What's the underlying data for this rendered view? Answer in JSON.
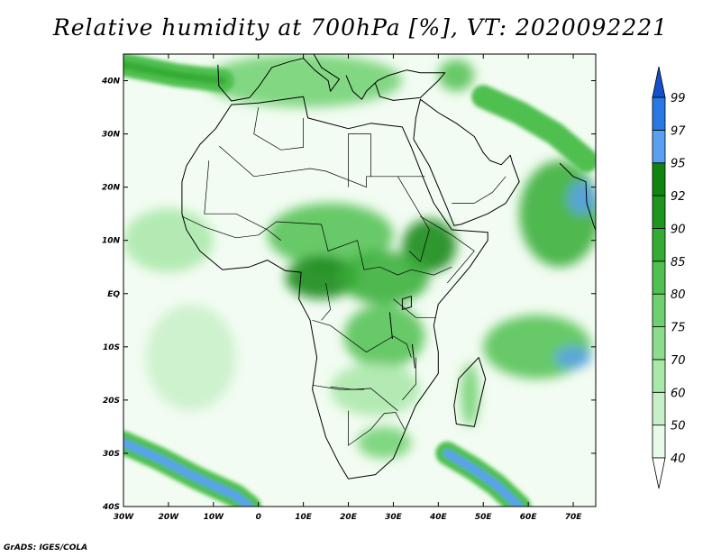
{
  "title": "Relative humidity at 700hPa [%], VT: 2020092221",
  "credit": "GrADS: IGES/COLA",
  "map": {
    "projection": "latlon",
    "lon_range": [
      -30,
      75
    ],
    "lat_range": [
      -40,
      45
    ],
    "x_ticks": [
      {
        "lon": -30,
        "label": "30W"
      },
      {
        "lon": -20,
        "label": "20W"
      },
      {
        "lon": -10,
        "label": "10W"
      },
      {
        "lon": 0,
        "label": "0"
      },
      {
        "lon": 10,
        "label": "10E"
      },
      {
        "lon": 20,
        "label": "20E"
      },
      {
        "lon": 30,
        "label": "30E"
      },
      {
        "lon": 40,
        "label": "40E"
      },
      {
        "lon": 50,
        "label": "50E"
      },
      {
        "lon": 60,
        "label": "60E"
      },
      {
        "lon": 70,
        "label": "70E"
      }
    ],
    "y_ticks": [
      {
        "lat": 40,
        "label": "40N"
      },
      {
        "lat": 30,
        "label": "30N"
      },
      {
        "lat": 20,
        "label": "20N"
      },
      {
        "lat": 10,
        "label": "10N"
      },
      {
        "lat": 0,
        "label": "EQ"
      },
      {
        "lat": -10,
        "label": "10S"
      },
      {
        "lat": -20,
        "label": "20S"
      },
      {
        "lat": -30,
        "label": "30S"
      },
      {
        "lat": -40,
        "label": "40S"
      }
    ]
  },
  "colorbar": {
    "levels": [
      "40",
      "50",
      "60",
      "70",
      "75",
      "80",
      "85",
      "90",
      "92",
      "95",
      "97",
      "99"
    ],
    "colors": [
      "#ffffff",
      "#e8fae8",
      "#c8f0c8",
      "#a8e8a8",
      "#8cdc8c",
      "#6ed06e",
      "#50c050",
      "#34ac34",
      "#1e961e",
      "#108410",
      "#5aa0f0",
      "#2878e6",
      "#1450c8"
    ]
  },
  "chart_data": {
    "type": "heatmap",
    "variable": "Relative humidity at 700hPa",
    "unit": "%",
    "valid_time": "2020092221",
    "contour_levels": [
      40,
      50,
      60,
      70,
      75,
      80,
      85,
      90,
      92,
      95,
      97,
      99
    ],
    "x_range": [
      -30,
      75
    ],
    "y_range": [
      -40,
      45
    ],
    "moist_regions": [
      {
        "lon": 16,
        "lat": 11,
        "rx": 14,
        "ry": 6,
        "value": 82
      },
      {
        "lon": 14,
        "lat": 3,
        "rx": 8,
        "ry": 4,
        "value": 94
      },
      {
        "lon": 38,
        "lat": 9,
        "rx": 6,
        "ry": 5,
        "value": 92
      },
      {
        "lon": 28,
        "lat": 3,
        "rx": 10,
        "ry": 5,
        "value": 86
      },
      {
        "lon": 28,
        "lat": -8,
        "rx": 9,
        "ry": 6,
        "value": 80
      },
      {
        "lon": 26,
        "lat": -18,
        "rx": 10,
        "ry": 5,
        "value": 65
      },
      {
        "lon": 28,
        "lat": -28,
        "rx": 6,
        "ry": 3,
        "value": 78
      },
      {
        "lon": 47,
        "lat": -19,
        "rx": 2,
        "ry": 6,
        "value": 75
      },
      {
        "lon": 62,
        "lat": -10,
        "rx": 12,
        "ry": 6,
        "value": 80
      },
      {
        "lon": 67,
        "lat": 15,
        "rx": 9,
        "ry": 10,
        "value": 85
      },
      {
        "lon": 72,
        "lat": 18,
        "rx": 3,
        "ry": 3,
        "value": 96
      },
      {
        "lon": -20,
        "lat": 10,
        "rx": 10,
        "ry": 6,
        "value": 65
      },
      {
        "lon": -15,
        "lat": -12,
        "rx": 10,
        "ry": 10,
        "value": 55
      },
      {
        "lon": 10,
        "lat": 40,
        "rx": 22,
        "ry": 5,
        "value": 78
      },
      {
        "lon": 44,
        "lat": 41,
        "rx": 4,
        "ry": 3,
        "value": 80
      },
      {
        "lon": 70,
        "lat": -12,
        "rx": 4,
        "ry": 2,
        "value": 96
      }
    ],
    "moist_bands": [
      {
        "name": "south-atlantic-band",
        "points": [
          [
            -30,
            -28
          ],
          [
            -22,
            -31
          ],
          [
            -14,
            -34.5
          ],
          [
            -5,
            -38
          ],
          [
            -2,
            -40
          ]
        ],
        "value": 96
      },
      {
        "name": "southwest-indian-band",
        "points": [
          [
            42,
            -30
          ],
          [
            48,
            -33
          ],
          [
            53,
            -36
          ],
          [
            58,
            -40
          ]
        ],
        "value": 95
      },
      {
        "name": "north-atlantic-band",
        "points": [
          [
            -30,
            43
          ],
          [
            -18,
            41
          ],
          [
            -8,
            40
          ]
        ],
        "value": 85
      },
      {
        "name": "iran-band",
        "points": [
          [
            50,
            37
          ],
          [
            58,
            34
          ],
          [
            66,
            30
          ],
          [
            73,
            25
          ]
        ],
        "value": 80
      }
    ]
  }
}
